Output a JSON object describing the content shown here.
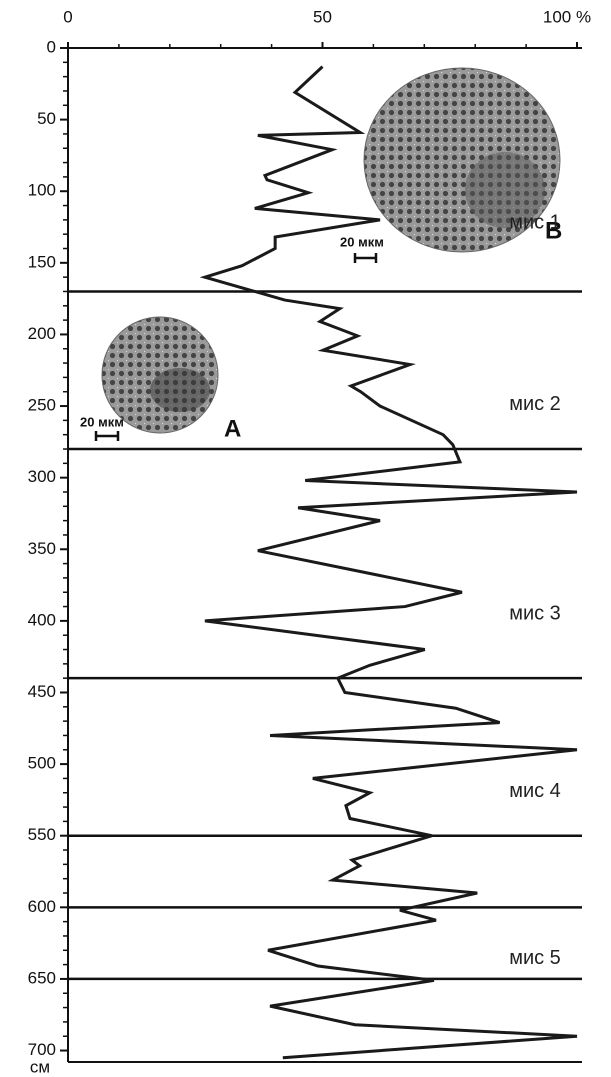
{
  "chart_data": {
    "type": "line",
    "orientation": "vertical",
    "y_label": "см",
    "color": "#1a1a1a",
    "xlim": [
      0,
      100
    ],
    "xticks": [
      0,
      50,
      {
        "value": 100,
        "label": "100 %"
      }
    ],
    "xminorticks": [
      10,
      20,
      30,
      40,
      60,
      70,
      80,
      90
    ],
    "ylim": [
      0,
      708
    ],
    "yticks": [
      0,
      50,
      100,
      150,
      200,
      250,
      300,
      350,
      400,
      450,
      500,
      550,
      600,
      650,
      700
    ],
    "yminorticks": [
      10,
      20,
      30,
      40,
      60,
      70,
      80,
      90,
      110,
      120,
      130,
      140,
      160,
      170,
      180,
      190,
      210,
      220,
      230,
      240,
      260,
      270,
      280,
      290,
      310,
      320,
      330,
      340,
      360,
      370,
      380,
      390,
      410,
      420,
      430,
      440,
      460,
      470,
      480,
      490,
      510,
      520,
      530,
      540,
      560,
      570,
      580,
      590,
      610,
      620,
      630,
      640,
      660,
      670,
      680,
      690
    ],
    "x": [
      50,
      44.6,
      57.4,
      37.3,
      51.9,
      38.7,
      39.1,
      47.2,
      36.7,
      61.3,
      40.7,
      40.7,
      34.2,
      26.9,
      42.6,
      53.4,
      49.5,
      56.9,
      50.1,
      67.2,
      55.6,
      57.5,
      61.3,
      73.7,
      75.6,
      77,
      46.6,
      100,
      45.2,
      61.3,
      37.3,
      77.4,
      66.2,
      26.9,
      70.1,
      59.3,
      53,
      54.4,
      76.2,
      84.8,
      39.7,
      100,
      48.1,
      59.3,
      54.6,
      55.4,
      71.5,
      55.8,
      57.3,
      52,
      80.4,
      65.2,
      72.3,
      39.3,
      49.1,
      71.9,
      39.7,
      56.4,
      100,
      42.2
    ],
    "values": [
      13,
      31,
      59,
      61,
      71,
      89,
      92,
      101,
      112,
      120,
      132,
      140,
      152,
      160,
      176,
      182,
      191,
      201,
      211,
      221,
      236,
      240,
      250,
      270,
      277,
      289,
      302,
      310,
      321,
      330,
      351,
      380,
      390,
      400,
      420,
      431,
      440,
      450,
      461,
      471,
      480,
      490,
      510,
      520,
      529,
      538,
      550,
      567,
      571,
      581,
      590,
      602,
      609,
      630,
      641,
      651,
      669,
      682,
      690,
      705
    ],
    "zones": [
      {
        "label": "мис 1",
        "from": 0,
        "to": 170
      },
      {
        "label": "мис 2",
        "from": 170,
        "to": 280
      },
      {
        "label": "мис 3",
        "from": 280,
        "to": 440
      },
      {
        "label": "мис 4",
        "from": 440,
        "to": 550
      },
      {
        "label": "мис 5",
        "from": 600,
        "to": 650
      }
    ],
    "boundaries": [
      170,
      280,
      440,
      550,
      600,
      650
    ],
    "annotations": {
      "image_a": "A",
      "image_b": "B",
      "scale_a": "20 мкм",
      "scale_b": "20 мкм"
    }
  }
}
